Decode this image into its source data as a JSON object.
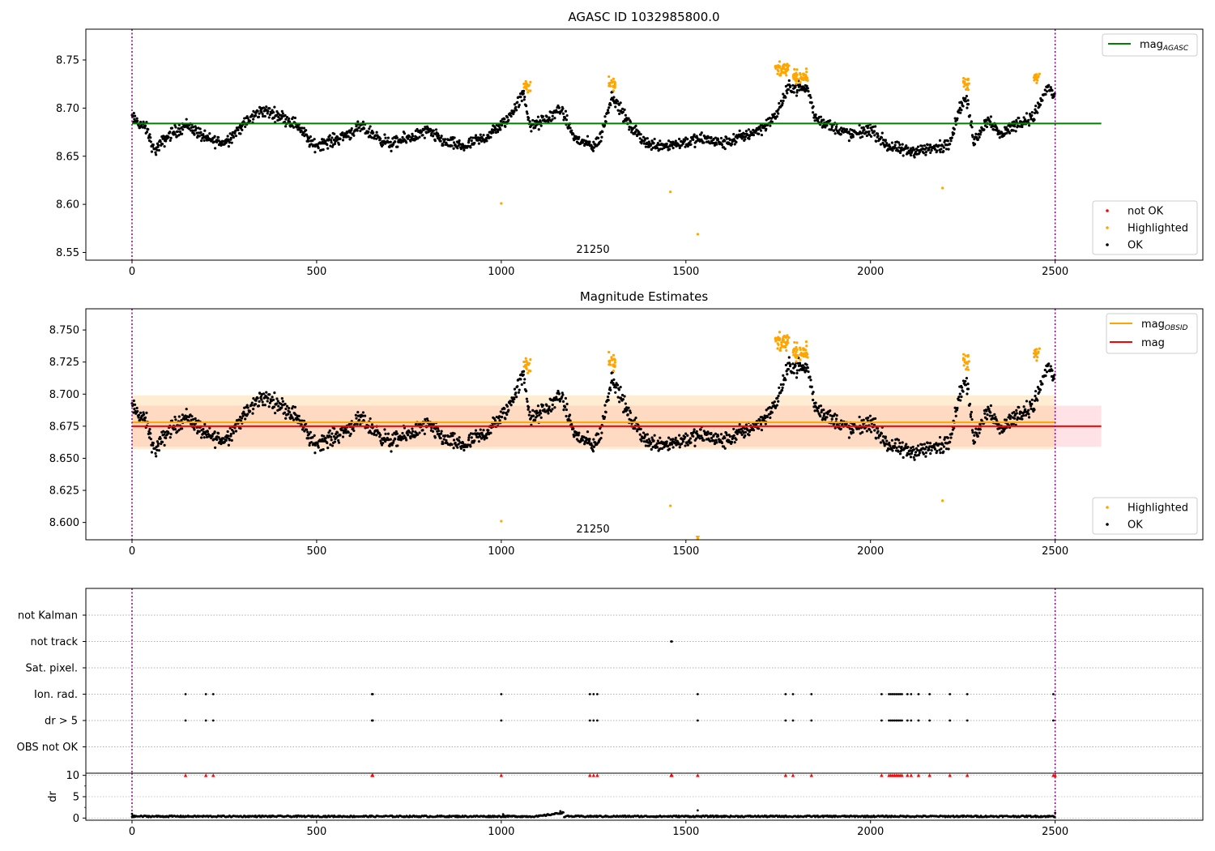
{
  "chart_data": [
    {
      "type": "scatter",
      "title": "AGASC ID 1032985800.0",
      "xlabel": "",
      "ylabel": "",
      "xlim": [
        -125,
        2900
      ],
      "ylim": [
        8.542,
        8.782
      ],
      "xticks": [
        0,
        500,
        1000,
        1500,
        2000,
        2500
      ],
      "yticks": [
        8.55,
        8.6,
        8.65,
        8.7,
        8.75
      ],
      "ytick_labels": [
        "8.55",
        "8.60",
        "8.65",
        "8.70",
        "8.75"
      ],
      "grid": false,
      "annotation": "21250",
      "vlines": [
        0,
        2500
      ],
      "hline": {
        "name": "mag_AGASC",
        "y": 8.684,
        "x_range": [
          0,
          2625
        ],
        "color": "#008000"
      },
      "legend_top": {
        "position": "top-right",
        "entries": [
          {
            "label": "mag",
            "sub": "AGASC",
            "color": "#008000"
          }
        ]
      },
      "legend_bottom": {
        "position": "lower-right",
        "entries": [
          {
            "label": "not OK",
            "color": "#ff0000"
          },
          {
            "label": "Highlighted",
            "color": "#ffa500"
          },
          {
            "label": "OK",
            "color": "#000000"
          }
        ]
      },
      "series": [
        {
          "name": "OK",
          "color": "#000000",
          "profile": [
            [
              0,
              8.69
            ],
            [
              40,
              8.678
            ],
            [
              60,
              8.655
            ],
            [
              100,
              8.672
            ],
            [
              150,
              8.683
            ],
            [
              200,
              8.668
            ],
            [
              250,
              8.664
            ],
            [
              300,
              8.682
            ],
            [
              350,
              8.698
            ],
            [
              400,
              8.692
            ],
            [
              450,
              8.682
            ],
            [
              490,
              8.661
            ],
            [
              550,
              8.667
            ],
            [
              620,
              8.68
            ],
            [
              700,
              8.662
            ],
            [
              800,
              8.676
            ],
            [
              850,
              8.664
            ],
            [
              900,
              8.66
            ],
            [
              960,
              8.67
            ],
            [
              1000,
              8.682
            ],
            [
              1020,
              8.69
            ],
            [
              1060,
              8.715
            ],
            [
              1080,
              8.68
            ],
            [
              1130,
              8.69
            ],
            [
              1160,
              8.7
            ],
            [
              1200,
              8.668
            ],
            [
              1250,
              8.66
            ],
            [
              1270,
              8.67
            ],
            [
              1300,
              8.714
            ],
            [
              1350,
              8.68
            ],
            [
              1400,
              8.662
            ],
            [
              1460,
              8.662
            ],
            [
              1500,
              8.665
            ],
            [
              1550,
              8.668
            ],
            [
              1600,
              8.663
            ],
            [
              1650,
              8.67
            ],
            [
              1700,
              8.678
            ],
            [
              1740,
              8.69
            ],
            [
              1780,
              8.722
            ],
            [
              1830,
              8.72
            ],
            [
              1850,
              8.69
            ],
            [
              1900,
              8.68
            ],
            [
              1950,
              8.672
            ],
            [
              2000,
              8.678
            ],
            [
              2050,
              8.66
            ],
            [
              2100,
              8.655
            ],
            [
              2150,
              8.657
            ],
            [
              2200,
              8.66
            ],
            [
              2220,
              8.67
            ],
            [
              2240,
              8.7
            ],
            [
              2260,
              8.71
            ],
            [
              2280,
              8.665
            ],
            [
              2320,
              8.69
            ],
            [
              2350,
              8.672
            ],
            [
              2400,
              8.685
            ],
            [
              2440,
              8.69
            ],
            [
              2480,
              8.722
            ],
            [
              2500,
              8.712
            ]
          ]
        },
        {
          "name": "Highlighted",
          "color": "#ffa500",
          "clusters": [
            [
              1070,
              8.721
            ],
            [
              1300,
              8.725
            ],
            [
              1760,
              8.74
            ],
            [
              1810,
              8.733
            ],
            [
              2260,
              8.725
            ],
            [
              2450,
              8.73
            ]
          ],
          "outliers": [
            [
              1000,
              8.601
            ],
            [
              1458,
              8.613
            ],
            [
              1532,
              8.569
            ],
            [
              2195,
              8.617
            ]
          ]
        }
      ]
    },
    {
      "type": "scatter",
      "title": "Magnitude Estimates",
      "xlabel": "",
      "ylabel": "",
      "xlim": [
        -125,
        2900
      ],
      "ylim": [
        8.5865,
        8.7665
      ],
      "xticks": [
        0,
        500,
        1000,
        1500,
        2000,
        2500
      ],
      "yticks": [
        8.6,
        8.625,
        8.65,
        8.675,
        8.7,
        8.725,
        8.75
      ],
      "ytick_labels": [
        "8.600",
        "8.625",
        "8.650",
        "8.675",
        "8.700",
        "8.725",
        "8.750"
      ],
      "grid": false,
      "annotation": "21250",
      "vlines": [
        0,
        2500
      ],
      "bands": [
        {
          "y_range": [
            8.659,
            8.691
          ],
          "x_range": [
            0,
            2625
          ],
          "color": "#ffb6c1"
        },
        {
          "y_range": [
            8.657,
            8.699
          ],
          "x_range": [
            0,
            2500
          ],
          "color": "#ffcc80"
        }
      ],
      "lines": [
        {
          "name": "mag_OBSID",
          "y": 8.678,
          "x_range": [
            0,
            2500
          ],
          "color": "#ffa500"
        },
        {
          "name": "mag",
          "y": 8.675,
          "x_range": [
            0,
            2625
          ],
          "color": "#ff0000"
        }
      ],
      "legend_top": {
        "position": "top-right",
        "entries": [
          {
            "label": "mag",
            "sub": "OBSID",
            "color": "#ffa500"
          },
          {
            "label": "mag",
            "sub": "",
            "color": "#ff0000"
          }
        ]
      },
      "legend_bottom": {
        "position": "lower-right",
        "entries": [
          {
            "label": "Highlighted",
            "color": "#ffa500"
          },
          {
            "label": "OK",
            "color": "#000000"
          }
        ]
      },
      "series_ref": "same points as the first panel"
    },
    {
      "type": "scatter",
      "title": "",
      "xlabel": "",
      "ylabel": "",
      "xlim": [
        -125,
        2900
      ],
      "flag_rows": [
        "not Kalman",
        "not track",
        "Sat. pixel.",
        "Ion. rad.",
        "dr > 5",
        "OBS not OK"
      ],
      "vlines": [
        0,
        2500
      ],
      "flags": {
        "not track": [
          1460,
          1462
        ],
        "Ion. rad.": [
          145,
          200,
          220,
          650,
          652,
          1000,
          1240,
          1250,
          1260,
          1532,
          1770,
          1790,
          1840,
          2030,
          2050,
          2055,
          2060,
          2065,
          2070,
          2075,
          2080,
          2085,
          2100,
          2110,
          2130,
          2160,
          2215,
          2262,
          2495
        ],
        "dr > 5": [
          145,
          200,
          220,
          650,
          652,
          1000,
          1240,
          1250,
          1260,
          1532,
          1770,
          1790,
          1840,
          2030,
          2050,
          2055,
          2060,
          2065,
          2070,
          2075,
          2080,
          2085,
          2100,
          2110,
          2130,
          2160,
          2215,
          2262,
          2495
        ]
      }
    },
    {
      "type": "scatter",
      "title": "",
      "xlabel": "",
      "ylabel": "dr",
      "xlim": [
        -125,
        2900
      ],
      "ylim": [
        -0.5,
        10.5
      ],
      "xticks": [
        0,
        500,
        1000,
        1500,
        2000,
        2500
      ],
      "yticks": [
        0,
        5,
        10
      ],
      "grid": true,
      "vlines": [
        0,
        2500
      ],
      "series": [
        {
          "name": "dr",
          "color": "#000000",
          "typical": 0.4,
          "spikes": [
            [
              0,
              1.0
            ],
            [
              1005,
              0.9
            ],
            [
              1160,
              1.6
            ],
            [
              1532,
              1.8
            ],
            [
              2500,
              1.2
            ]
          ]
        },
        {
          "name": "clipped",
          "color": "#ff0000",
          "y": 10,
          "x": [
            145,
            200,
            220,
            650,
            652,
            1000,
            1240,
            1250,
            1260,
            1460,
            1462,
            1532,
            1770,
            1790,
            1840,
            2030,
            2050,
            2055,
            2060,
            2065,
            2070,
            2075,
            2080,
            2085,
            2100,
            2110,
            2130,
            2160,
            2215,
            2262,
            2495,
            2500
          ]
        }
      ]
    }
  ]
}
